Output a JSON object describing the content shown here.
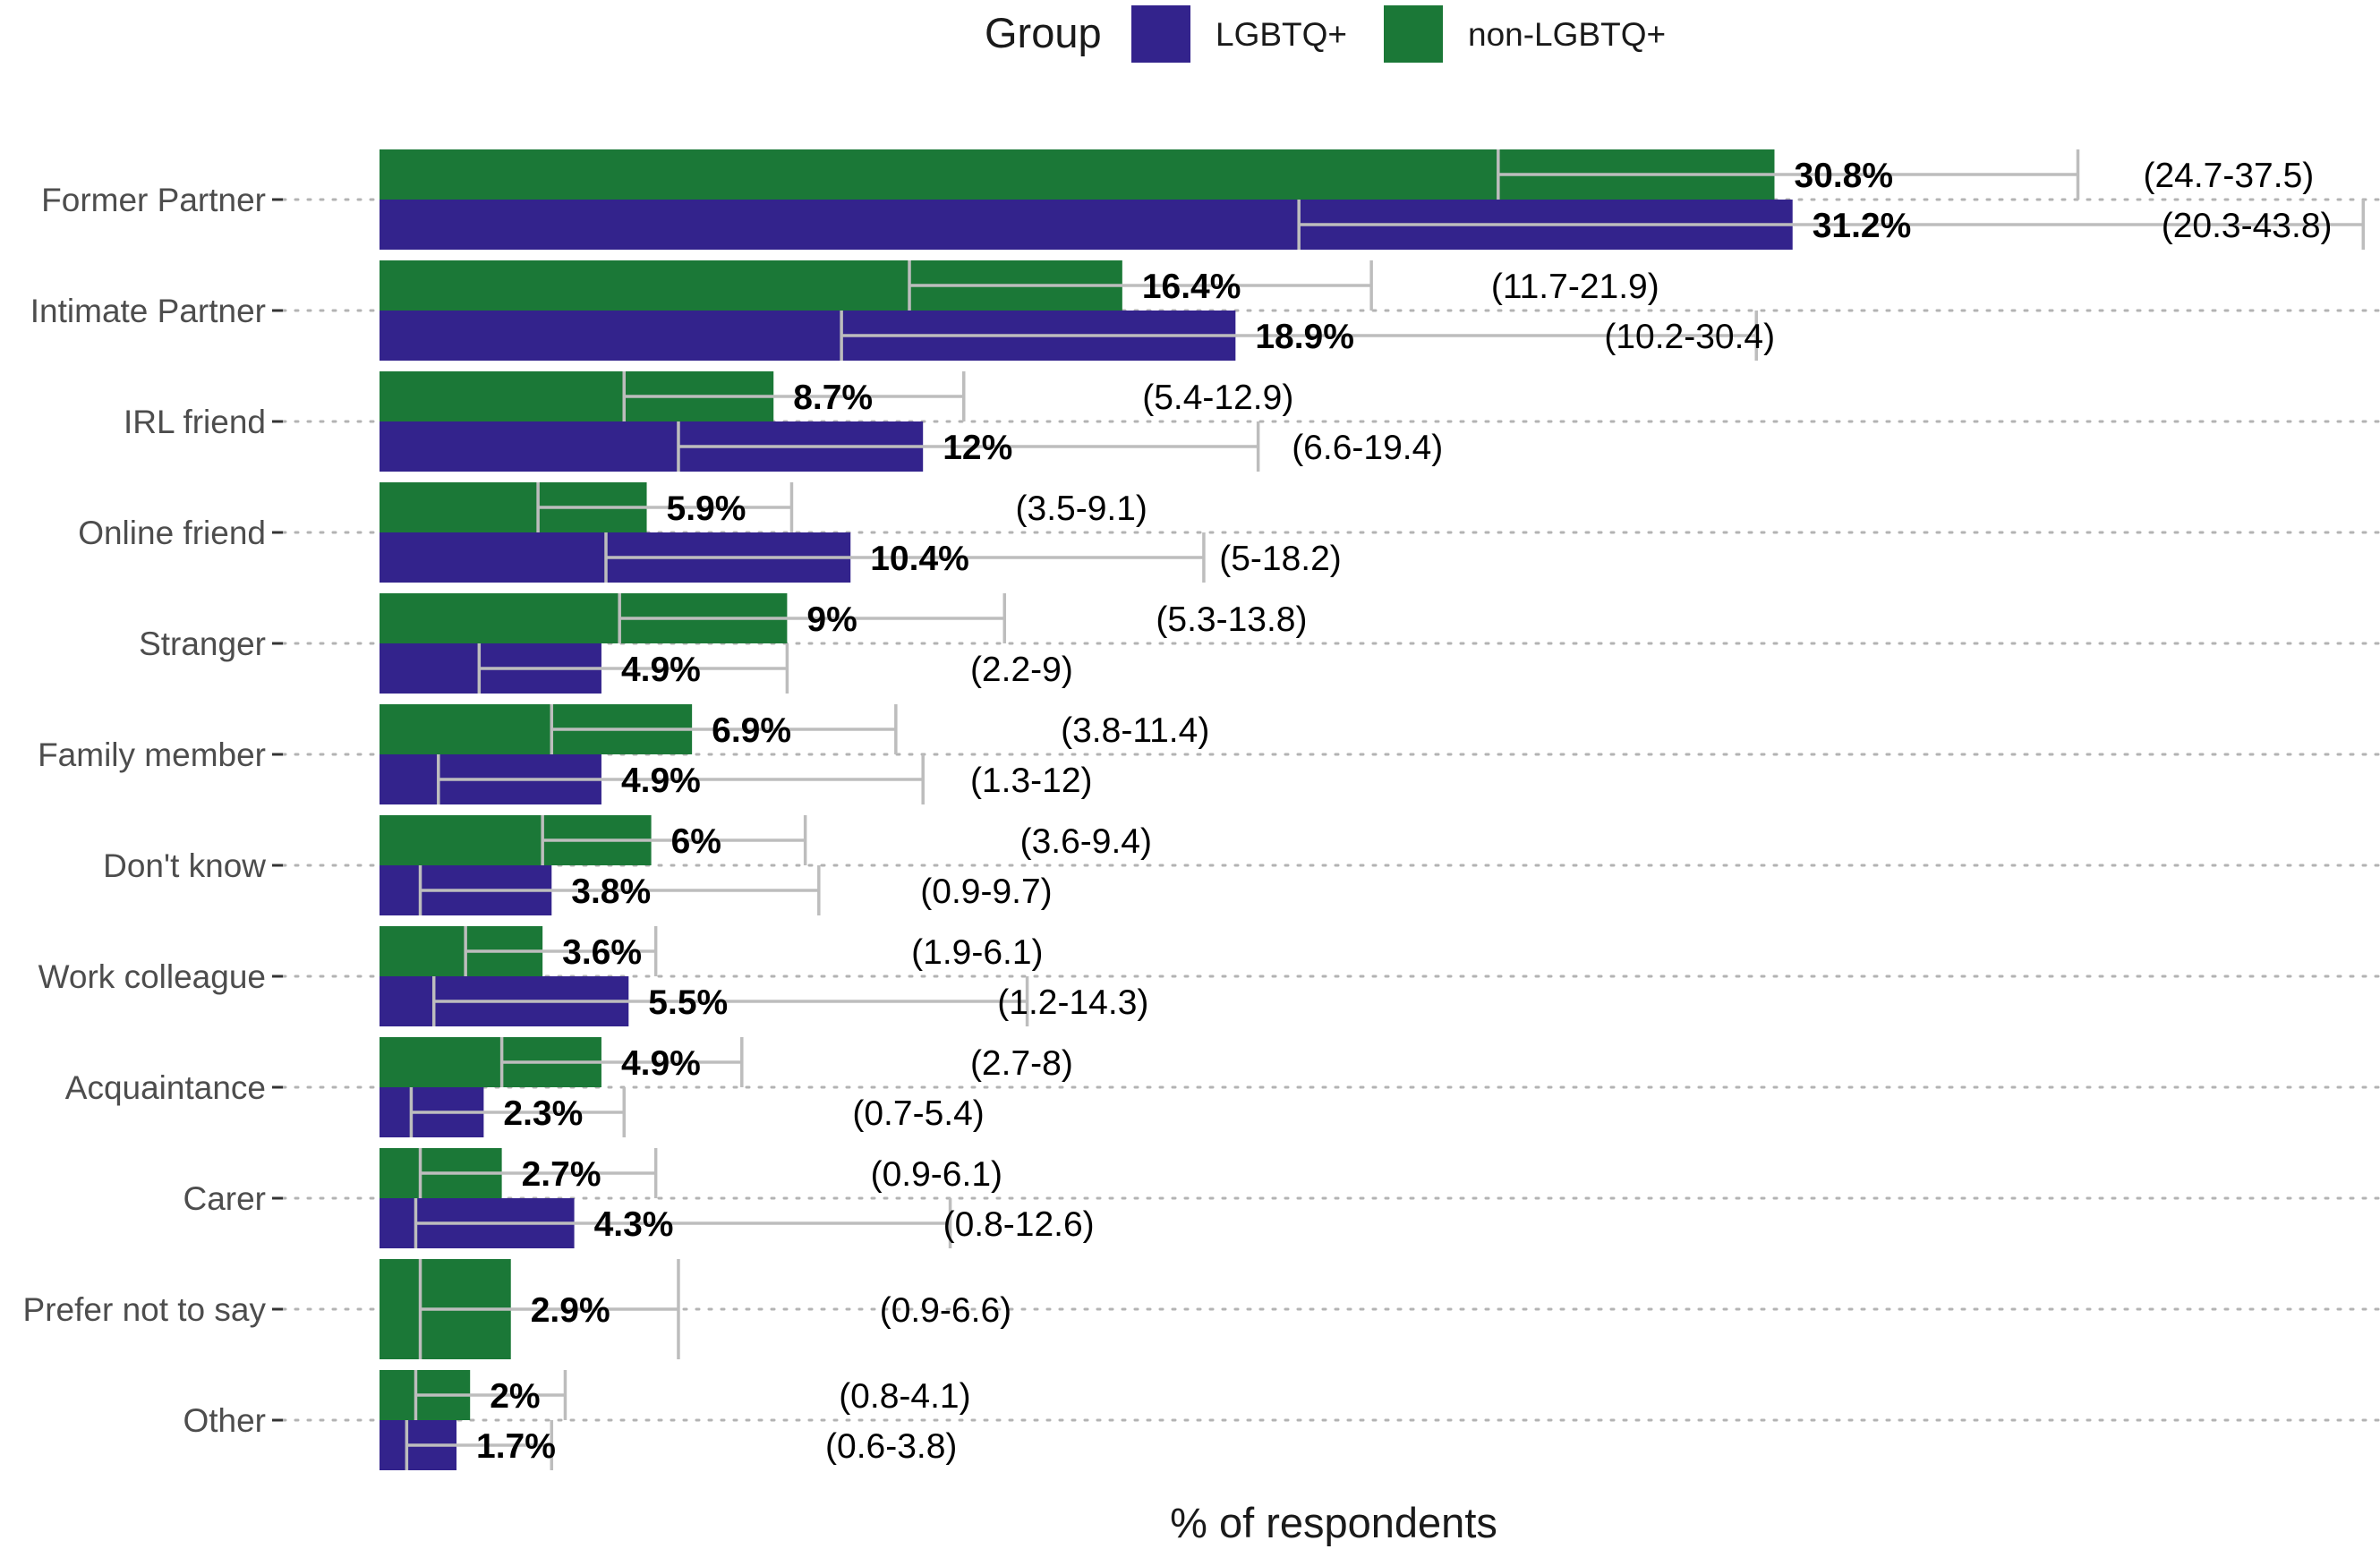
{
  "chart_data": {
    "type": "bar",
    "orientation": "horizontal",
    "title": "",
    "xlabel": "% of respondents",
    "ylabel": "",
    "xlim": [
      0,
      44
    ],
    "grid": "dotted horizontal lines at categories",
    "legend": {
      "title": "Group",
      "placement": "top",
      "entries": [
        {
          "name": "LGBTQ+",
          "color": "#33238C"
        },
        {
          "name": "non-LGBTQ+",
          "color": "#1B7837"
        }
      ]
    },
    "categories": [
      "Former Partner",
      "Intimate Partner",
      "IRL friend",
      "Online friend",
      "Stranger",
      "Family member",
      "Don't know",
      "Work colleague",
      "Acquaintance",
      "Carer",
      "Prefer not to say",
      "Other"
    ],
    "series": [
      {
        "name": "non-LGBTQ+",
        "color": "#1B7837",
        "values": [
          30.8,
          16.4,
          8.7,
          5.9,
          9,
          6.9,
          6,
          3.6,
          4.9,
          2.7,
          2.9,
          2
        ],
        "labels": [
          "30.8%",
          "16.4%",
          "8.7%",
          "5.9%",
          "9%",
          "6.9%",
          "6%",
          "3.6%",
          "4.9%",
          "2.7%",
          "2.9%",
          "2%"
        ],
        "ci_low": [
          24.7,
          11.7,
          5.4,
          3.5,
          5.3,
          3.8,
          3.6,
          1.9,
          2.7,
          0.9,
          0.9,
          0.8
        ],
        "ci_high": [
          37.5,
          21.9,
          12.9,
          9.1,
          13.8,
          11.4,
          9.4,
          6.1,
          8,
          6.1,
          6.6,
          4.1
        ],
        "ci_labels": [
          "(24.7-37.5)",
          "(11.7-21.9)",
          "(5.4-12.9)",
          "(3.5-9.1)",
          "(5.3-13.8)",
          "(3.8-11.4)",
          "(3.6-9.4)",
          "(1.9-6.1)",
          "(2.7-8)",
          "(0.9-6.1)",
          "(0.9-6.6)",
          "(0.8-4.1)"
        ]
      },
      {
        "name": "LGBTQ+",
        "color": "#33238C",
        "values": [
          31.2,
          18.9,
          12,
          10.4,
          4.9,
          4.9,
          3.8,
          5.5,
          2.3,
          4.3,
          null,
          1.7
        ],
        "labels": [
          "31.2%",
          "18.9%",
          "12%",
          "10.4%",
          "4.9%",
          "4.9%",
          "3.8%",
          "5.5%",
          "2.3%",
          "4.3%",
          null,
          "1.7%"
        ],
        "ci_low": [
          20.3,
          10.2,
          6.6,
          5,
          2.2,
          1.3,
          0.9,
          1.2,
          0.7,
          0.8,
          null,
          0.6
        ],
        "ci_high": [
          43.8,
          30.4,
          19.4,
          18.2,
          9,
          12,
          9.7,
          14.3,
          5.4,
          12.6,
          null,
          3.8
        ],
        "ci_labels": [
          "(20.3-43.8)",
          "(10.2-30.4)",
          "(6.6-19.4)",
          "(5-18.2)",
          "(2.2-9)",
          "(1.3-12)",
          "(0.9-9.7)",
          "(1.2-14.3)",
          "(0.7-5.4)",
          "(0.8-12.6)",
          null,
          "(0.6-3.8)"
        ]
      }
    ]
  }
}
